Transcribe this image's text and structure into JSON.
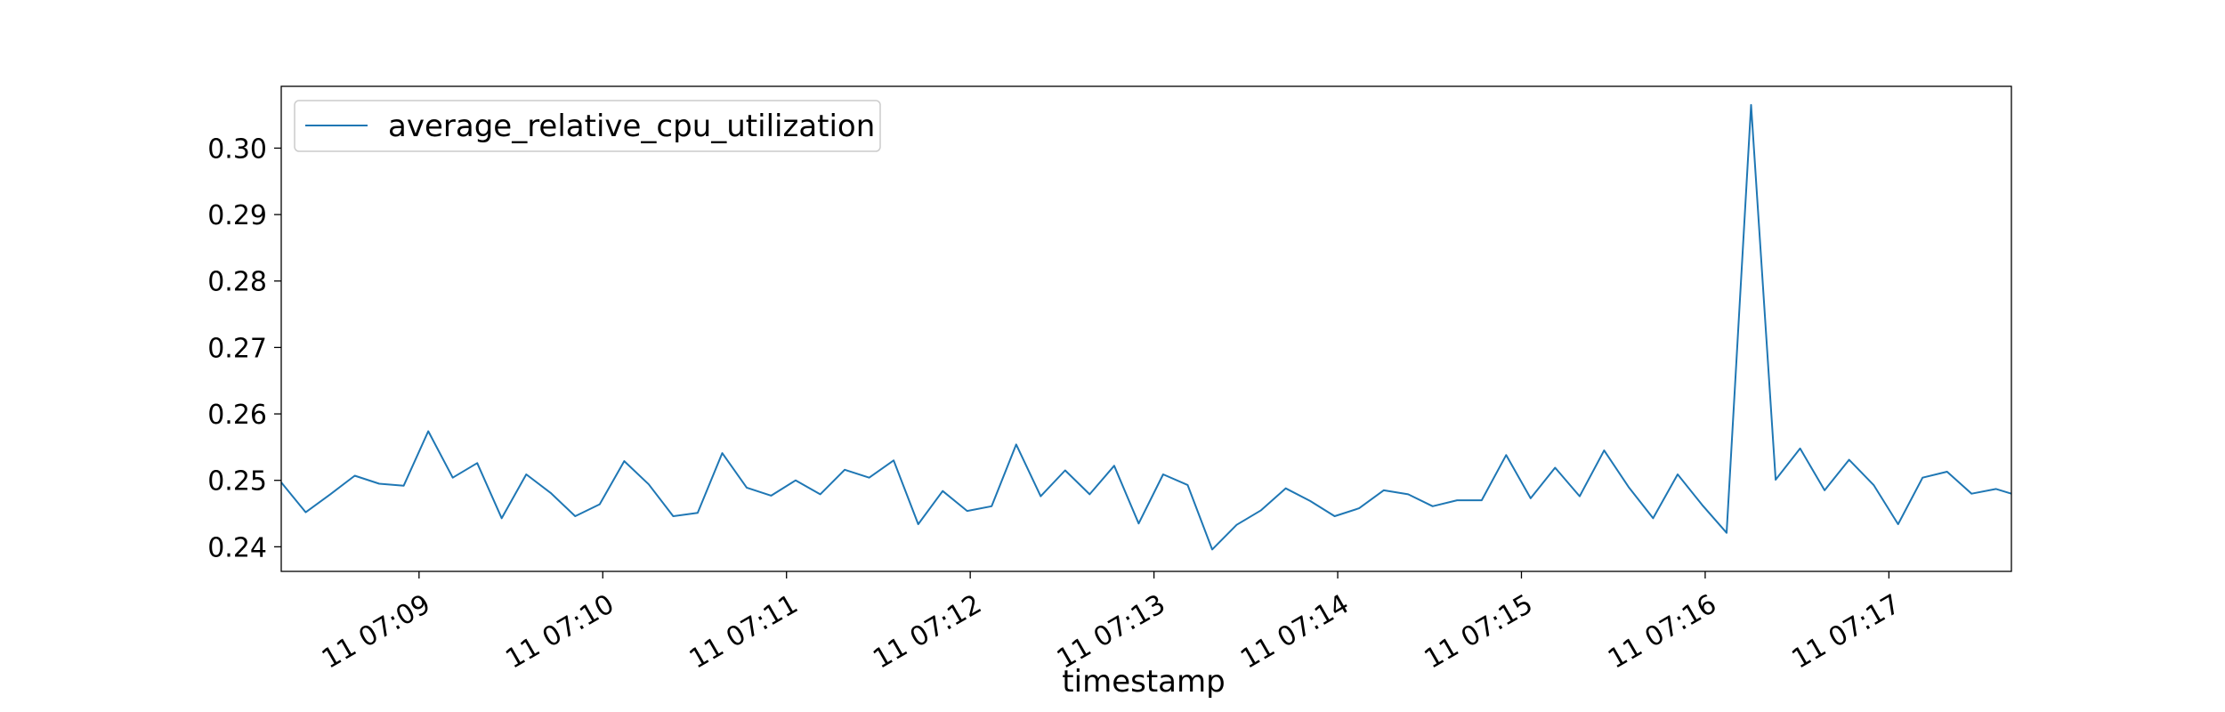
{
  "chart_data": {
    "type": "line",
    "title": "",
    "xlabel": "timestamp",
    "ylabel": "",
    "ylim": [
      0.2363,
      0.3093
    ],
    "y_ticks": [
      0.24,
      0.25,
      0.26,
      0.27,
      0.28,
      0.29,
      0.3
    ],
    "y_tick_labels": [
      "0.24",
      "0.25",
      "0.26",
      "0.27",
      "0.28",
      "0.29",
      "0.30"
    ],
    "x_range": [
      "07:08:15",
      "07:17:40"
    ],
    "x_ticks": [
      "07:09:00",
      "07:10:00",
      "07:11:00",
      "07:12:00",
      "07:13:00",
      "07:14:00",
      "07:15:00",
      "07:16:00",
      "07:17:00"
    ],
    "x_tick_labels": [
      "11 07:09",
      "11 07:10",
      "11 07:11",
      "11 07:12",
      "11 07:13",
      "11 07:14",
      "11 07:15",
      "11 07:16",
      "11 07:17"
    ],
    "legend_position": "upper-left",
    "grid": false,
    "series": [
      {
        "name": "average_relative_cpu_utilization",
        "color": "#1f77b4",
        "x": [
          "07:08:15",
          "07:08:23",
          "07:08:31",
          "07:08:39",
          "07:08:47",
          "07:08:55",
          "07:09:03",
          "07:09:11",
          "07:09:19",
          "07:09:27",
          "07:09:35",
          "07:09:43",
          "07:09:51",
          "07:09:59",
          "07:10:07",
          "07:10:15",
          "07:10:23",
          "07:10:31",
          "07:10:39",
          "07:10:47",
          "07:10:55",
          "07:11:03",
          "07:11:11",
          "07:11:19",
          "07:11:27",
          "07:11:35",
          "07:11:43",
          "07:11:51",
          "07:11:59",
          "07:12:07",
          "07:12:15",
          "07:12:23",
          "07:12:31",
          "07:12:39",
          "07:12:47",
          "07:12:55",
          "07:13:03",
          "07:13:11",
          "07:13:19",
          "07:13:27",
          "07:13:35",
          "07:13:43",
          "07:13:51",
          "07:13:59",
          "07:14:07",
          "07:14:15",
          "07:14:23",
          "07:14:31",
          "07:14:39",
          "07:14:47",
          "07:14:55",
          "07:15:03",
          "07:15:11",
          "07:15:19",
          "07:15:27",
          "07:15:35",
          "07:15:43",
          "07:15:51",
          "07:15:59",
          "07:16:07",
          "07:16:15",
          "07:16:23",
          "07:16:31",
          "07:16:39",
          "07:16:47",
          "07:16:55",
          "07:17:03",
          "07:17:11",
          "07:17:19",
          "07:17:27",
          "07:17:35",
          "07:17:40"
        ],
        "values": [
          0.2497,
          0.2452,
          0.2479,
          0.2507,
          0.2495,
          0.2492,
          0.2574,
          0.2504,
          0.2526,
          0.2443,
          0.2509,
          0.2481,
          0.2446,
          0.2464,
          0.2529,
          0.2494,
          0.2446,
          0.2451,
          0.2541,
          0.2489,
          0.2477,
          0.25,
          0.2479,
          0.2516,
          0.2504,
          0.253,
          0.2434,
          0.2484,
          0.2454,
          0.2461,
          0.2554,
          0.2476,
          0.2515,
          0.2479,
          0.2522,
          0.2435,
          0.2509,
          0.2493,
          0.2396,
          0.2433,
          0.2455,
          0.2488,
          0.2469,
          0.2446,
          0.2458,
          0.2485,
          0.2479,
          0.2461,
          0.247,
          0.247,
          0.2538,
          0.2473,
          0.2519,
          0.2476,
          0.2545,
          0.249,
          0.2443,
          0.2509,
          0.2463,
          0.2421,
          0.3065,
          0.2501,
          0.2548,
          0.2485,
          0.2531,
          0.2493,
          0.2434,
          0.2504,
          0.2513,
          0.248,
          0.2487,
          0.248
        ]
      }
    ]
  }
}
